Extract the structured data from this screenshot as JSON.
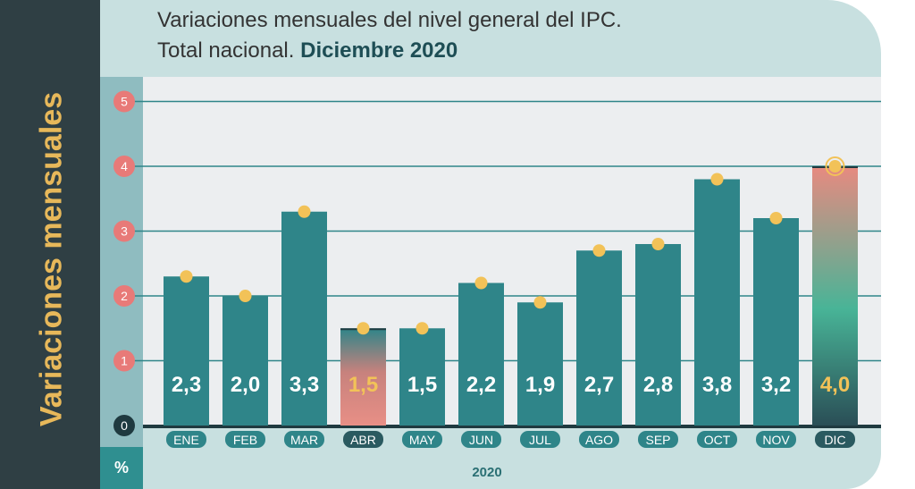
{
  "title": {
    "line1": "Variaciones mensuales del nivel general del IPC.",
    "line2_prefix": "Total nacional.",
    "line2_emphasis": "Diciembre 2020"
  },
  "side_label": "Variaciones mensuales",
  "unit_label": "%",
  "colors": {
    "bar": "#2f8589",
    "dot": "#f2c258",
    "highlight_label": "#f2c258",
    "tick_badge": "#e87a78",
    "plot_bg": "#eceef0"
  },
  "chart_data": {
    "type": "bar",
    "title": "Variaciones mensuales del nivel general del IPC. Total nacional. Diciembre 2020",
    "xlabel": "2020",
    "ylabel": "Variaciones mensuales",
    "unit": "%",
    "ylim": [
      0,
      5
    ],
    "yticks": [
      "0",
      "1",
      "2",
      "3",
      "4",
      "5"
    ],
    "grid": true,
    "categories": [
      "ENE",
      "FEB",
      "MAR",
      "ABR",
      "MAY",
      "JUN",
      "JUL",
      "AGO",
      "SEP",
      "OCT",
      "NOV",
      "DIC"
    ],
    "values": [
      2.3,
      2.0,
      3.3,
      1.5,
      1.5,
      2.2,
      1.9,
      2.7,
      2.8,
      3.8,
      3.2,
      4.0
    ],
    "labels": [
      "2,3",
      "2,0",
      "3,3",
      "1,5",
      "1,5",
      "2,2",
      "1,9",
      "2,7",
      "2,8",
      "3,8",
      "3,2",
      "4,0"
    ],
    "highlighted": [
      "ABR",
      "DIC"
    ]
  }
}
